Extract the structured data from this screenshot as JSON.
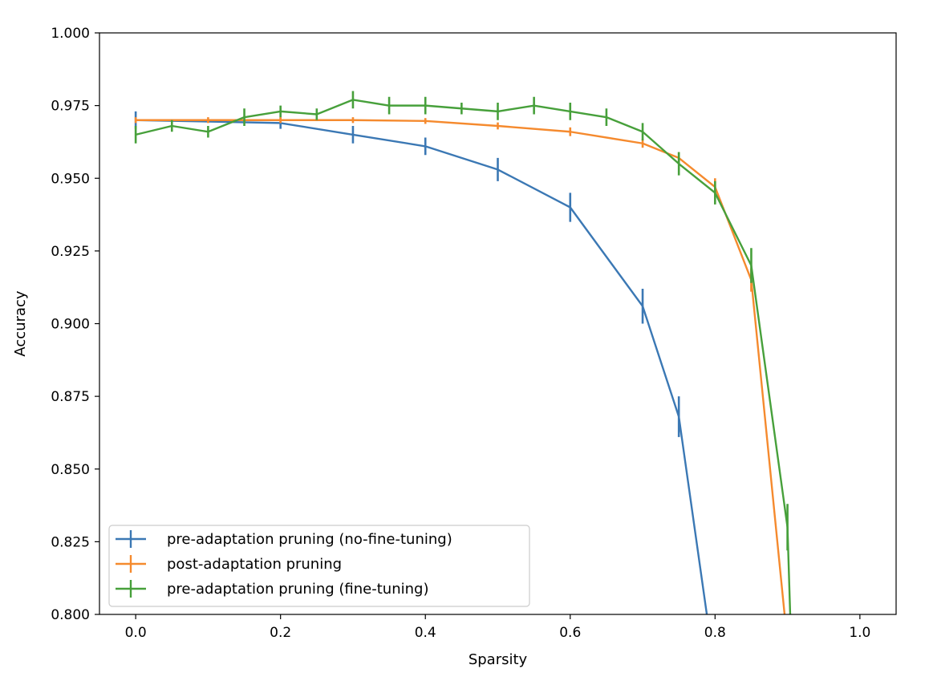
{
  "chart_data": {
    "type": "line",
    "xlabel": "Sparsity",
    "ylabel": "Accuracy",
    "xlim": [
      -0.05,
      1.05
    ],
    "ylim": [
      0.8,
      1.0
    ],
    "xticks": [
      0.0,
      0.2,
      0.4,
      0.6,
      0.8,
      1.0
    ],
    "xtick_labels": [
      "0.0",
      "0.2",
      "0.4",
      "0.6",
      "0.8",
      "1.0"
    ],
    "yticks": [
      0.8,
      0.825,
      0.85,
      0.875,
      0.9,
      0.925,
      0.95,
      0.975,
      1.0
    ],
    "ytick_labels": [
      "0.800",
      "0.825",
      "0.850",
      "0.875",
      "0.900",
      "0.925",
      "0.950",
      "0.975",
      "1.000"
    ],
    "grid": false,
    "legend_position": "lower-left",
    "series": [
      {
        "name": "pre-adaptation pruning (no-fine-tuning)",
        "color": "#3b78b4",
        "x": [
          0.0,
          0.2,
          0.3,
          0.4,
          0.5,
          0.6,
          0.7,
          0.75,
          0.8
        ],
        "y": [
          0.97,
          0.969,
          0.965,
          0.961,
          0.953,
          0.94,
          0.906,
          0.868,
          0.78
        ],
        "err": [
          0.003,
          0.002,
          0.003,
          0.003,
          0.004,
          0.005,
          0.006,
          0.007,
          0.0
        ]
      },
      {
        "name": "post-adaptation pruning",
        "color": "#f58a2e",
        "x": [
          0.0,
          0.1,
          0.2,
          0.3,
          0.4,
          0.5,
          0.6,
          0.7,
          0.75,
          0.8,
          0.85,
          0.9
        ],
        "y": [
          0.97,
          0.97,
          0.97,
          0.97,
          0.9697,
          0.968,
          0.966,
          0.962,
          0.957,
          0.947,
          0.915,
          0.79
        ],
        "err": [
          0.001,
          0.001,
          0.001,
          0.001,
          0.001,
          0.0012,
          0.0015,
          0.0015,
          0.002,
          0.003,
          0.004,
          0.0
        ]
      },
      {
        "name": "pre-adaptation pruning (fine-tuning)",
        "color": "#47a03b",
        "x": [
          0.0,
          0.05,
          0.1,
          0.15,
          0.2,
          0.25,
          0.3,
          0.35,
          0.4,
          0.45,
          0.5,
          0.55,
          0.6,
          0.65,
          0.7,
          0.75,
          0.8,
          0.85,
          0.9,
          0.905
        ],
        "y": [
          0.965,
          0.968,
          0.966,
          0.971,
          0.973,
          0.972,
          0.977,
          0.975,
          0.975,
          0.974,
          0.973,
          0.975,
          0.973,
          0.971,
          0.966,
          0.955,
          0.945,
          0.92,
          0.83,
          0.79
        ],
        "err": [
          0.003,
          0.002,
          0.002,
          0.003,
          0.002,
          0.002,
          0.003,
          0.003,
          0.003,
          0.002,
          0.003,
          0.003,
          0.003,
          0.003,
          0.003,
          0.004,
          0.004,
          0.006,
          0.008,
          0.0
        ]
      }
    ]
  }
}
